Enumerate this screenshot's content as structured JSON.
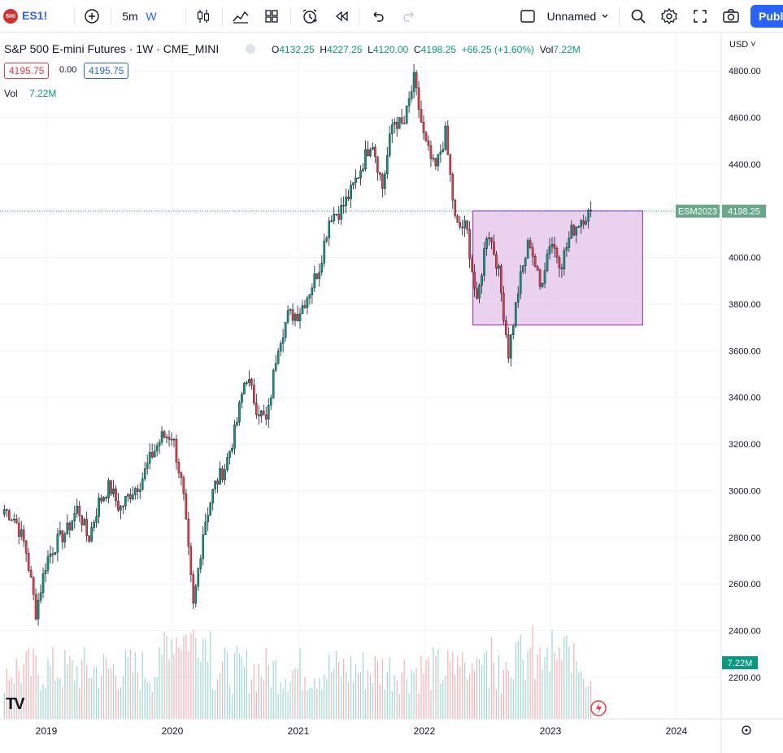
{
  "toolbar": {
    "logo_text": "500",
    "symbol": "ES1!",
    "interval": "5m",
    "resolution": "W",
    "layout_name": "Unnamed",
    "publish_label": "Publ",
    "icons": [
      "add-symbol-icon",
      "candles-icon",
      "indicators-icon",
      "templates-icon",
      "alert-icon",
      "replay-icon",
      "undo-icon",
      "redo-icon",
      "layout-icon",
      "search-icon",
      "settings-icon",
      "fullscreen-icon",
      "camera-icon"
    ]
  },
  "legend": {
    "title": "S&P 500 E-mini Futures · 1W · CME_MINI",
    "o_label": "O",
    "o_value": "4132.25",
    "h_label": "H",
    "h_value": "4227.25",
    "l_label": "L",
    "l_value": "4120.00",
    "c_label": "C",
    "c_value": "4198.25",
    "change": "+66.25 (+1.60%)",
    "vol_label_inline": "Vol",
    "vol_inline": "7.22M",
    "bid": "4195.75",
    "spread": "0.00",
    "ask": "4195.75",
    "vol_label": "Vol",
    "vol_value": "7.22M"
  },
  "price_axis": {
    "currency": "USD",
    "ticks": [
      "4800.00",
      "4600.00",
      "4400.00",
      "4200.00",
      "4000.00",
      "3800.00",
      "3600.00",
      "3400.00",
      "3200.00",
      "3000.00",
      "2800.00",
      "2600.00",
      "2400.00",
      "2200.00"
    ],
    "last_price_label": "4198.25",
    "last_symbol_label": "ESM2023",
    "volume_label": "7.22M"
  },
  "time_axis": {
    "ticks": [
      "2019",
      "2020",
      "2021",
      "2022",
      "2023",
      "2024"
    ]
  },
  "colors": {
    "up": "#089981",
    "down": "#f23645",
    "accent": "#2962ff",
    "rect_fill": "#e1bee7",
    "rect_stroke": "#9c27b0"
  },
  "chart_data": {
    "type": "candlestick",
    "title": "S&P 500 E-mini Futures · 1W · CME_MINI",
    "ylim": [
      2100,
      4860
    ],
    "xlim": [
      "2018-09",
      "2024-03"
    ],
    "grid": true,
    "series": [
      {
        "name": "ES1!",
        "values_by_month": [
          [
            "2018-09",
            2920
          ],
          [
            "2018-10",
            2880
          ],
          [
            "2018-11",
            2760
          ],
          [
            "2018-12",
            2480
          ],
          [
            "2019-01",
            2700
          ],
          [
            "2019-02",
            2780
          ],
          [
            "2019-03",
            2830
          ],
          [
            "2019-04",
            2930
          ],
          [
            "2019-05",
            2790
          ],
          [
            "2019-06",
            2950
          ],
          [
            "2019-07",
            3020
          ],
          [
            "2019-08",
            2920
          ],
          [
            "2019-09",
            2990
          ],
          [
            "2019-10",
            3040
          ],
          [
            "2019-11",
            3150
          ],
          [
            "2019-12",
            3230
          ],
          [
            "2020-01",
            3240
          ],
          [
            "2020-02",
            3000
          ],
          [
            "2020-03",
            2500
          ],
          [
            "2020-04",
            2850
          ],
          [
            "2020-05",
            3020
          ],
          [
            "2020-06",
            3100
          ],
          [
            "2020-07",
            3260
          ],
          [
            "2020-08",
            3500
          ],
          [
            "2020-09",
            3360
          ],
          [
            "2020-10",
            3290
          ],
          [
            "2020-11",
            3620
          ],
          [
            "2020-12",
            3750
          ],
          [
            "2021-01",
            3760
          ],
          [
            "2021-02",
            3850
          ],
          [
            "2021-03",
            3960
          ],
          [
            "2021-04",
            4180
          ],
          [
            "2021-05",
            4200
          ],
          [
            "2021-06",
            4280
          ],
          [
            "2021-07",
            4390
          ],
          [
            "2021-08",
            4510
          ],
          [
            "2021-09",
            4300
          ],
          [
            "2021-10",
            4590
          ],
          [
            "2021-11",
            4560
          ],
          [
            "2021-12",
            4760
          ],
          [
            "2022-01",
            4500
          ],
          [
            "2022-02",
            4370
          ],
          [
            "2022-03",
            4530
          ],
          [
            "2022-04",
            4130
          ],
          [
            "2022-05",
            4130
          ],
          [
            "2022-06",
            3790
          ],
          [
            "2022-07",
            4130
          ],
          [
            "2022-08",
            3960
          ],
          [
            "2022-09",
            3590
          ],
          [
            "2022-10",
            3880
          ],
          [
            "2022-11",
            4080
          ],
          [
            "2022-12",
            3870
          ],
          [
            "2023-01",
            4080
          ],
          [
            "2023-02",
            3970
          ],
          [
            "2023-03",
            4110
          ],
          [
            "2023-04",
            4170
          ],
          [
            "2023-05",
            4198.25
          ]
        ]
      },
      {
        "name": "Vol",
        "last": "7.22M"
      }
    ],
    "annotations": [
      {
        "type": "rectangle",
        "x_start": "2022-05",
        "x_end": "2023-09",
        "y_low": 3710,
        "y_high": 4200
      }
    ],
    "last_close": 4198.25
  }
}
